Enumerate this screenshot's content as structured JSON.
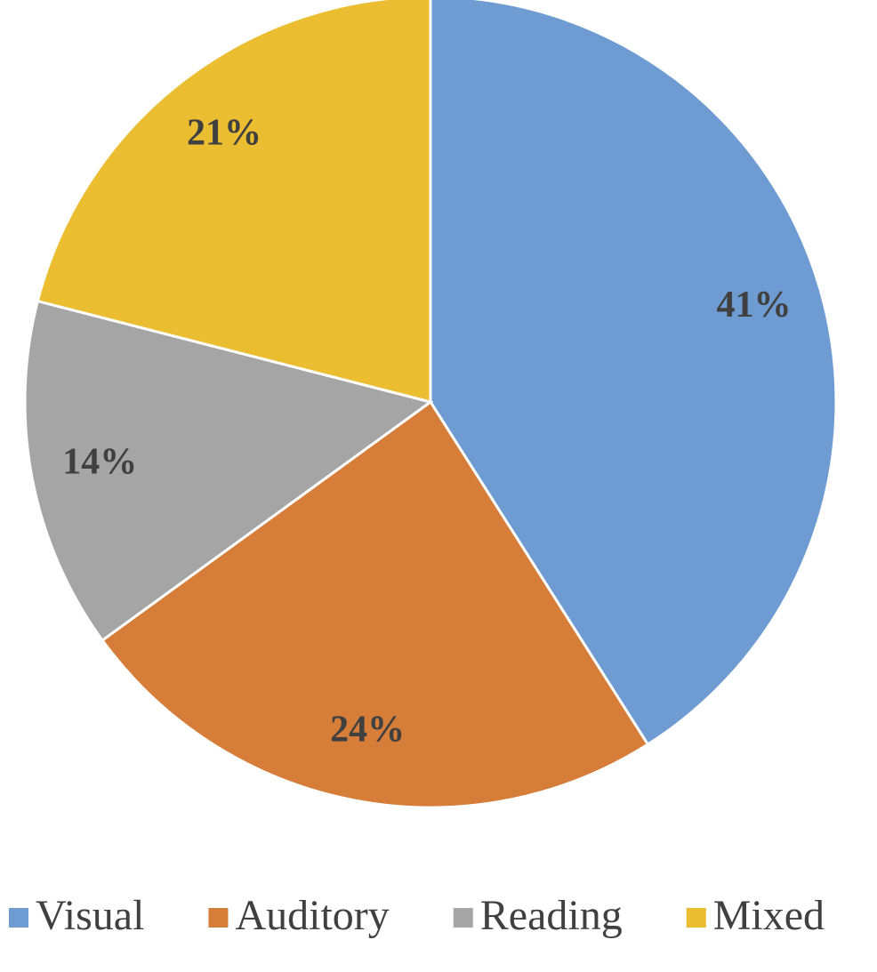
{
  "chart_data": {
    "type": "pie",
    "categories": [
      "Visual",
      "Auditory",
      "Reading",
      "Mixed"
    ],
    "values": [
      41,
      24,
      14,
      21
    ],
    "value_labels": [
      "41%",
      "24%",
      "14%",
      "21%"
    ],
    "colors": [
      "#6f9bd3",
      "#d57d39",
      "#a5a5a5",
      "#ebbd30"
    ],
    "legend": "bottom"
  }
}
